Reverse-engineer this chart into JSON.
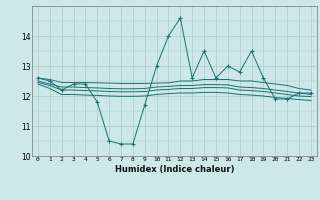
{
  "xlabel": "Humidex (Indice chaleur)",
  "background_color": "#cce8e8",
  "grid_color": "#aacccc",
  "line_color": "#1a7070",
  "xlim": [
    -0.5,
    23.5
  ],
  "ylim": [
    10,
    15
  ],
  "yticks": [
    10,
    11,
    12,
    13,
    14
  ],
  "xticks": [
    0,
    1,
    2,
    3,
    4,
    5,
    6,
    7,
    8,
    9,
    10,
    11,
    12,
    13,
    14,
    15,
    16,
    17,
    18,
    19,
    20,
    21,
    22,
    23
  ],
  "series_main": [
    12.6,
    12.5,
    12.2,
    12.4,
    12.4,
    11.8,
    10.5,
    10.4,
    10.4,
    11.7,
    13.0,
    14.0,
    14.6,
    12.6,
    13.5,
    12.6,
    13.0,
    12.8,
    13.5,
    12.6,
    11.9,
    11.9,
    12.1,
    12.1
  ],
  "series_upper": [
    12.6,
    12.55,
    12.45,
    12.45,
    12.45,
    12.44,
    12.43,
    12.42,
    12.42,
    12.42,
    12.43,
    12.44,
    12.5,
    12.5,
    12.55,
    12.55,
    12.55,
    12.5,
    12.5,
    12.45,
    12.4,
    12.35,
    12.25,
    12.2
  ],
  "series_mid1": [
    12.5,
    12.4,
    12.3,
    12.3,
    12.28,
    12.27,
    12.25,
    12.24,
    12.24,
    12.25,
    12.3,
    12.32,
    12.35,
    12.35,
    12.38,
    12.38,
    12.37,
    12.3,
    12.28,
    12.25,
    12.2,
    12.15,
    12.1,
    12.05
  ],
  "series_mid2": [
    12.45,
    12.35,
    12.2,
    12.2,
    12.18,
    12.17,
    12.15,
    12.14,
    12.14,
    12.15,
    12.2,
    12.22,
    12.25,
    12.25,
    12.28,
    12.28,
    12.27,
    12.2,
    12.18,
    12.15,
    12.1,
    12.05,
    12.0,
    11.98
  ],
  "series_lower": [
    12.4,
    12.25,
    12.05,
    12.05,
    12.03,
    12.02,
    12.0,
    11.99,
    11.99,
    12.0,
    12.05,
    12.08,
    12.1,
    12.1,
    12.12,
    12.12,
    12.1,
    12.05,
    12.03,
    12.0,
    11.95,
    11.92,
    11.88,
    11.85
  ]
}
